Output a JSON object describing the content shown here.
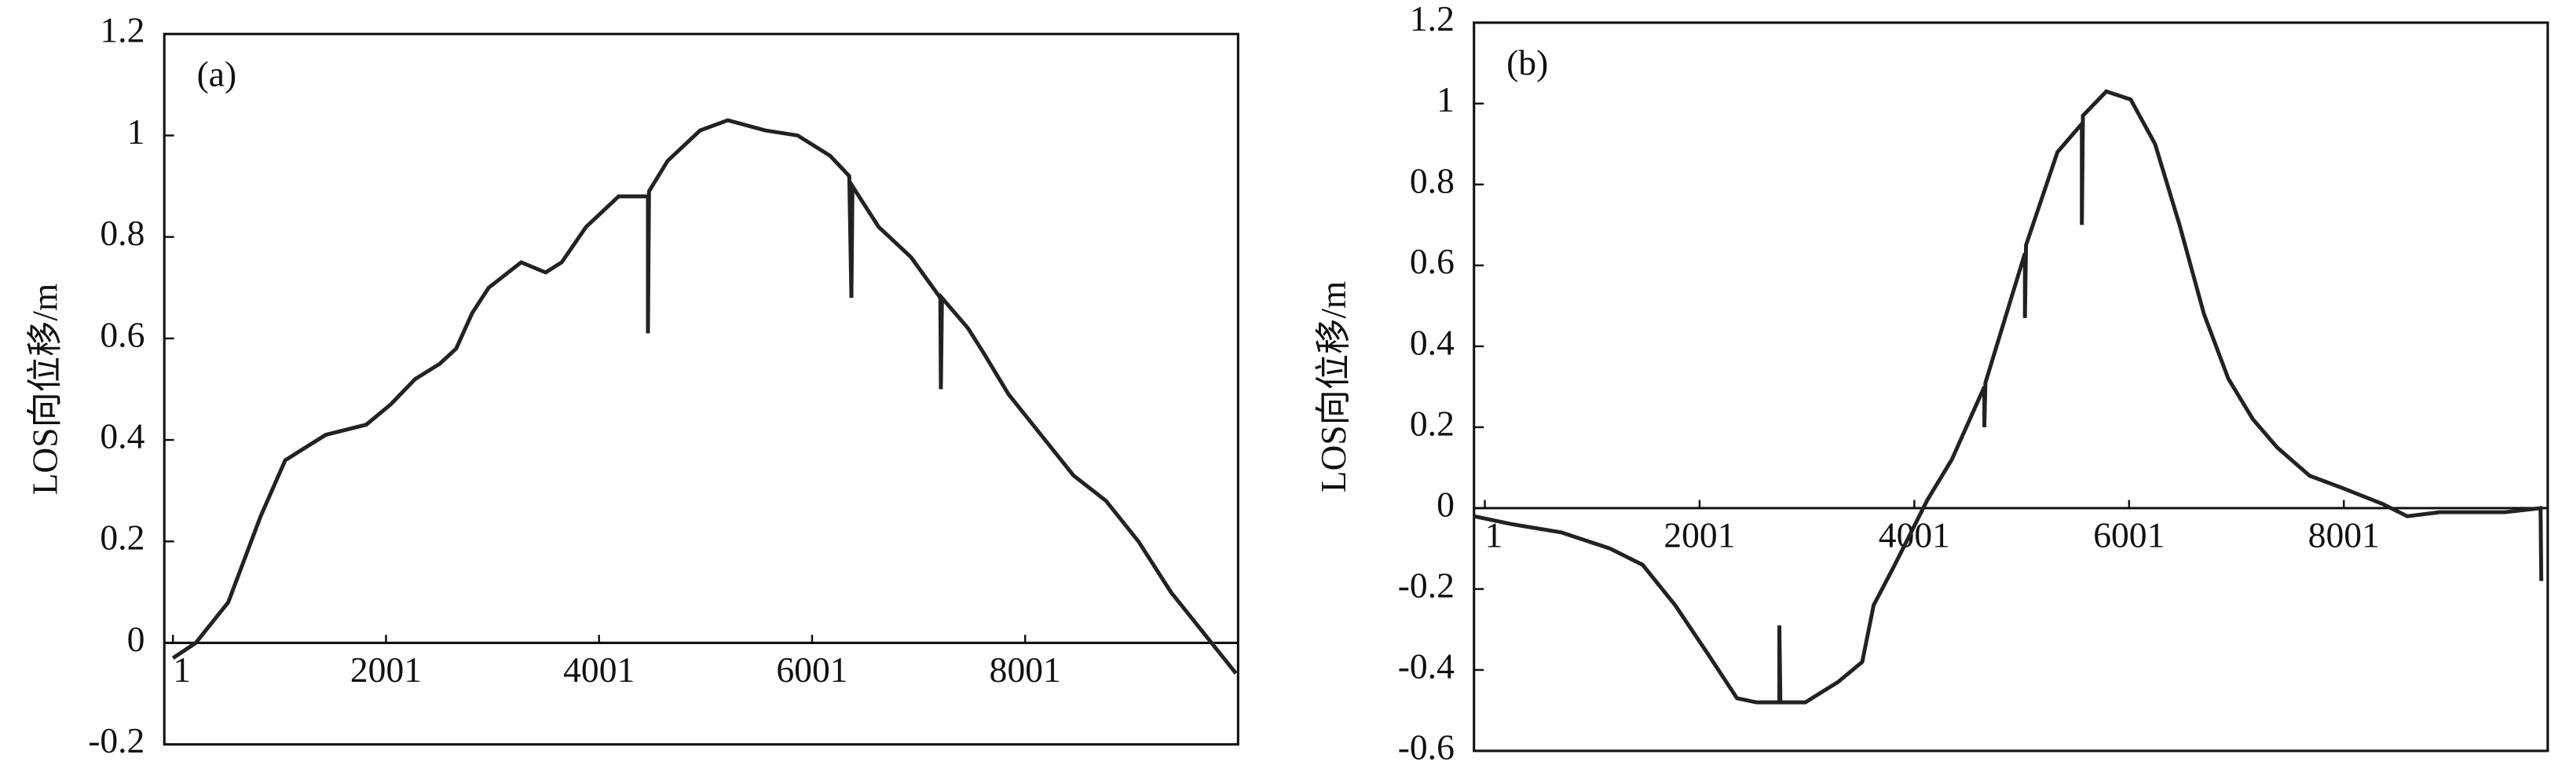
{
  "chart_data": [
    {
      "type": "line",
      "annotation": "(a)",
      "y_label": "LOS向位移/m",
      "color": "#222222",
      "xlim": [
        -80,
        10000
      ],
      "xticks": [
        1,
        2001,
        4001,
        6001,
        8001
      ],
      "ylim": [
        -0.2,
        1.2
      ],
      "yticks": [
        -0.2,
        0,
        0.2,
        0.4,
        0.6,
        0.8,
        1,
        1.2
      ],
      "x": [
        1,
        215,
        520,
        825,
        1055,
        1435,
        1815,
        2045,
        2275,
        2505,
        2660,
        2810,
        2965,
        3270,
        3500,
        3650,
        3880,
        4185,
        4460,
        4460,
        4470,
        4645,
        4950,
        5210,
        5560,
        5865,
        6170,
        6350,
        6370,
        6380,
        6625,
        6930,
        7205,
        7210,
        7220,
        7465,
        7615,
        7845,
        8150,
        8455,
        8760,
        9065,
        9370,
        9675,
        9980
      ],
      "values": [
        -0.03,
        0.0,
        0.08,
        0.25,
        0.36,
        0.41,
        0.43,
        0.47,
        0.52,
        0.55,
        0.58,
        0.65,
        0.7,
        0.75,
        0.73,
        0.75,
        0.82,
        0.88,
        0.88,
        0.61,
        0.89,
        0.95,
        1.01,
        1.03,
        1.01,
        1.0,
        0.96,
        0.92,
        0.68,
        0.9,
        0.82,
        0.76,
        0.68,
        0.5,
        0.68,
        0.62,
        0.57,
        0.49,
        0.41,
        0.33,
        0.28,
        0.2,
        0.1,
        0.02,
        -0.06
      ]
    },
    {
      "type": "line",
      "annotation": "(b)",
      "y_label": "LOS向位移/m",
      "color": "#222222",
      "xlim": [
        -100,
        9900
      ],
      "xticks": [
        1,
        2001,
        4001,
        6001,
        8001
      ],
      "ylim": [
        -0.6,
        1.2
      ],
      "yticks": [
        -0.6,
        -0.4,
        -0.2,
        0,
        0.2,
        0.4,
        0.6,
        0.8,
        1,
        1.2
      ],
      "x": [
        -100,
        258,
        713,
        1168,
        1470,
        1774,
        2077,
        2350,
        2531,
        2744,
        2744,
        2754,
        2986,
        3289,
        3516,
        3622,
        3819,
        4122,
        4350,
        4653,
        4653,
        4663,
        5031,
        5031,
        5041,
        5334,
        5561,
        5561,
        5571,
        5789,
        6016,
        6243,
        6471,
        6698,
        6925,
        7153,
        7380,
        7683,
        7986,
        8365,
        8592,
        8895,
        9500,
        9833,
        9840
      ],
      "values": [
        -0.02,
        -0.04,
        -0.06,
        -0.1,
        -0.14,
        -0.24,
        -0.36,
        -0.47,
        -0.48,
        -0.48,
        -0.29,
        -0.48,
        -0.48,
        -0.43,
        -0.38,
        -0.24,
        -0.14,
        0.02,
        0.12,
        0.3,
        0.2,
        0.31,
        0.63,
        0.47,
        0.65,
        0.88,
        0.95,
        0.7,
        0.97,
        1.03,
        1.01,
        0.9,
        0.7,
        0.48,
        0.32,
        0.22,
        0.15,
        0.08,
        0.05,
        0.01,
        -0.02,
        -0.01,
        -0.01,
        0.0,
        -0.18
      ]
    }
  ]
}
